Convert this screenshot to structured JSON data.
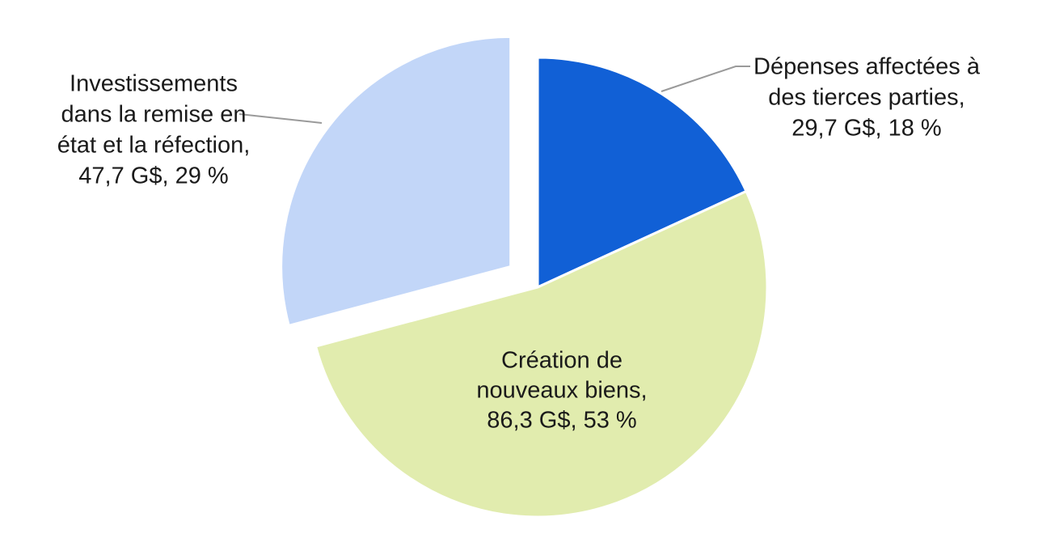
{
  "chart_data": {
    "type": "pie",
    "title": "",
    "unit": "G$",
    "slices": [
      {
        "label_lines": [
          "Dépenses affectées à",
          "des tierces parties,",
          "29,7 G$, 18 %"
        ],
        "value": 29.7,
        "percent": 18,
        "color": "#1160d6"
      },
      {
        "label_lines": [
          "Création de",
          "nouveaux biens,",
          "86,3 G$, 53 %"
        ],
        "value": 86.3,
        "percent": 53,
        "color": "#e1ecae"
      },
      {
        "label_lines": [
          "Investissements",
          "dans la remise en",
          "état et la réfection,",
          "47,7 G$, 29 %"
        ],
        "value": 47.7,
        "percent": 29,
        "color": "#c2d6f8"
      }
    ]
  }
}
